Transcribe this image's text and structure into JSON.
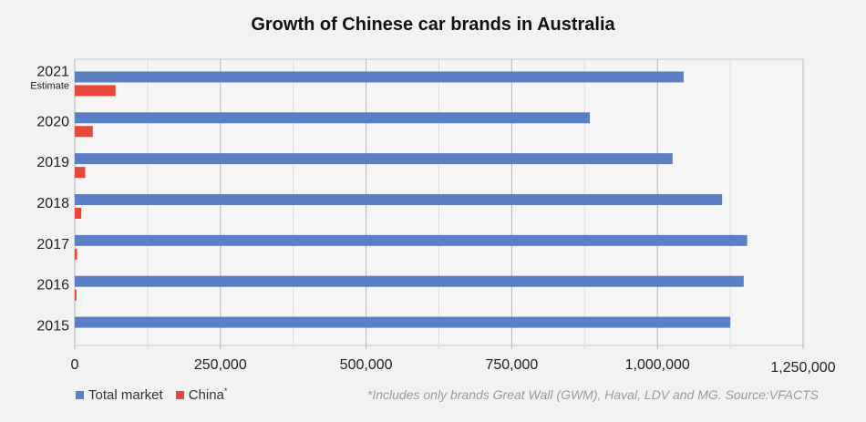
{
  "chart_data": {
    "type": "bar",
    "orientation": "horizontal",
    "title": "Growth of Chinese car brands in Australia",
    "categories": [
      "2015",
      "2016",
      "2017",
      "2018",
      "2019",
      "2020",
      "2021"
    ],
    "category_sublabels": {
      "2021": "Estimate"
    },
    "series": [
      {
        "name": "Total market",
        "color": "#5b7fc5",
        "values": [
          1125000,
          1148000,
          1154000,
          1111000,
          1026000,
          884000,
          1045000
        ]
      },
      {
        "name": "China",
        "color": "#e8473b",
        "values": [
          0,
          3000,
          4000,
          11000,
          18000,
          31000,
          70000
        ]
      }
    ],
    "xlim": [
      0,
      1250000
    ],
    "xticks": [
      "0",
      "250,000",
      "500,000",
      "750,000",
      "1,000,000",
      "1,250,000"
    ],
    "xtick_values": [
      0,
      250000,
      500000,
      750000,
      1000000,
      1250000
    ],
    "grid": "vertical",
    "legend_position": "bottom-left",
    "legend_labels": {
      "total": "Total market",
      "china": "China",
      "china_marker": "*"
    },
    "note": "*Includes only brands Great Wall (GWM), Haval, LDV and MG. Source:VFACTS"
  }
}
